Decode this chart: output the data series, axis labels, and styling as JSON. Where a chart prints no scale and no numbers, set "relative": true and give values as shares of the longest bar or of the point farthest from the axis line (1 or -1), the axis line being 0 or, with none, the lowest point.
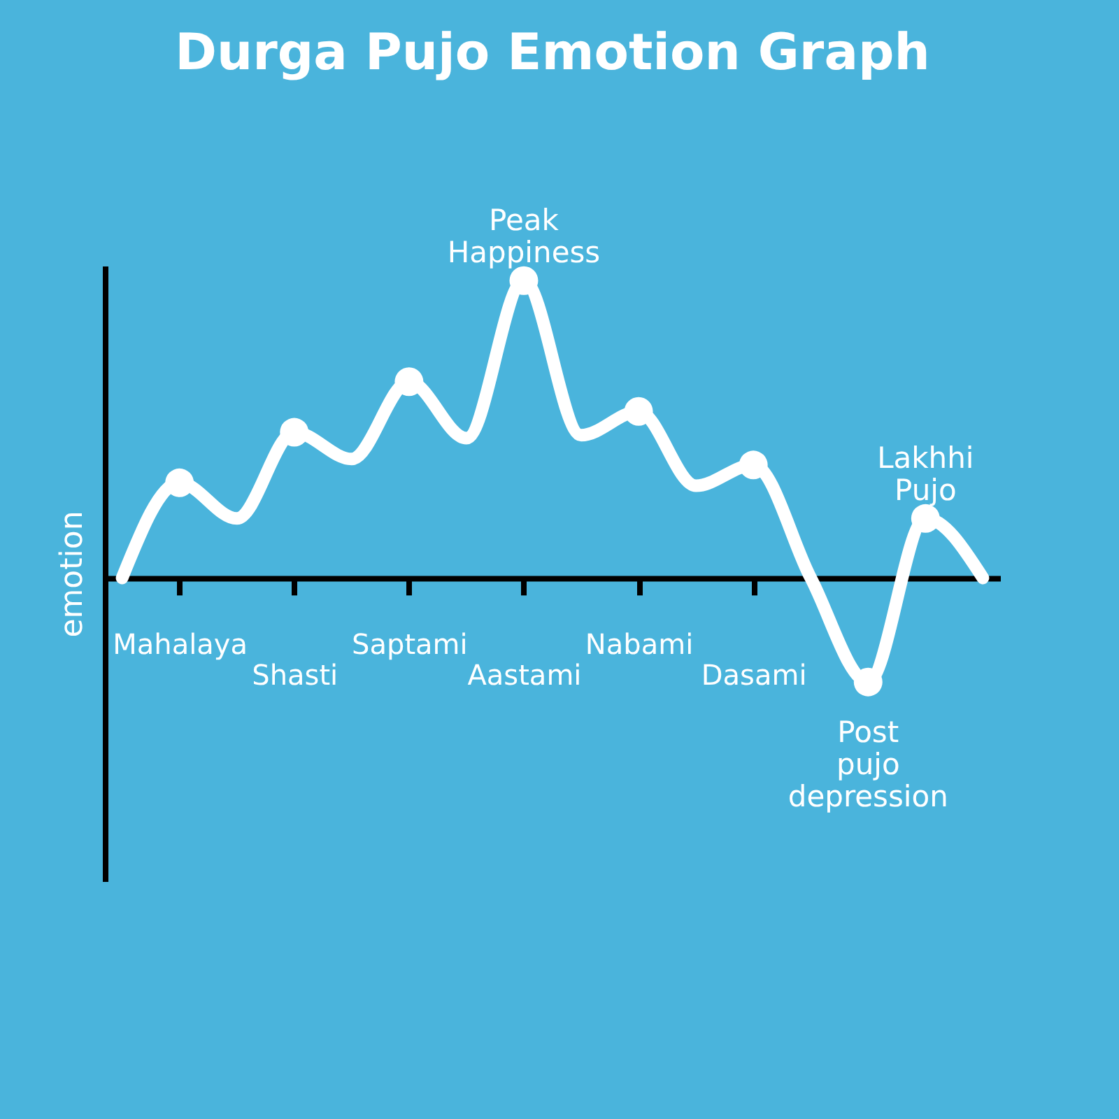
{
  "chart_data": {
    "type": "line",
    "title": "Durga Pujo Emotion Graph",
    "ylabel": "emotion",
    "relative": true,
    "tick_labels": "x",
    "categories": [
      null,
      "Mahalaya",
      null,
      "Shasti",
      null,
      "Saptami",
      null,
      "Aastami",
      null,
      "Nabami",
      null,
      "Dasami",
      null,
      null,
      null,
      null
    ],
    "series": [
      {
        "marker": "none",
        "color": "#ffffff",
        "values": [
          0,
          0.32,
          0.2,
          0.49,
          0.4,
          0.66,
          0.47,
          1.0,
          0.48,
          0.56,
          0.31,
          0.38,
          0,
          -0.35,
          0.2,
          0
        ]
      },
      {
        "type": "scatter",
        "marker": "circle",
        "color": "#ffffff",
        "values": [
          null,
          0.32,
          null,
          0.49,
          null,
          0.66,
          null,
          1.0,
          null,
          0.56,
          null,
          0.38,
          null,
          -0.35,
          0.2,
          null
        ]
      }
    ],
    "annotations": [
      {
        "text": "Peak Happiness",
        "x": "Aastami",
        "y": 1.0
      },
      {
        "text": "Post pujo depression",
        "y": -0.35
      },
      {
        "text": "Lakhhi Pujo",
        "y": 0.2
      }
    ]
  }
}
